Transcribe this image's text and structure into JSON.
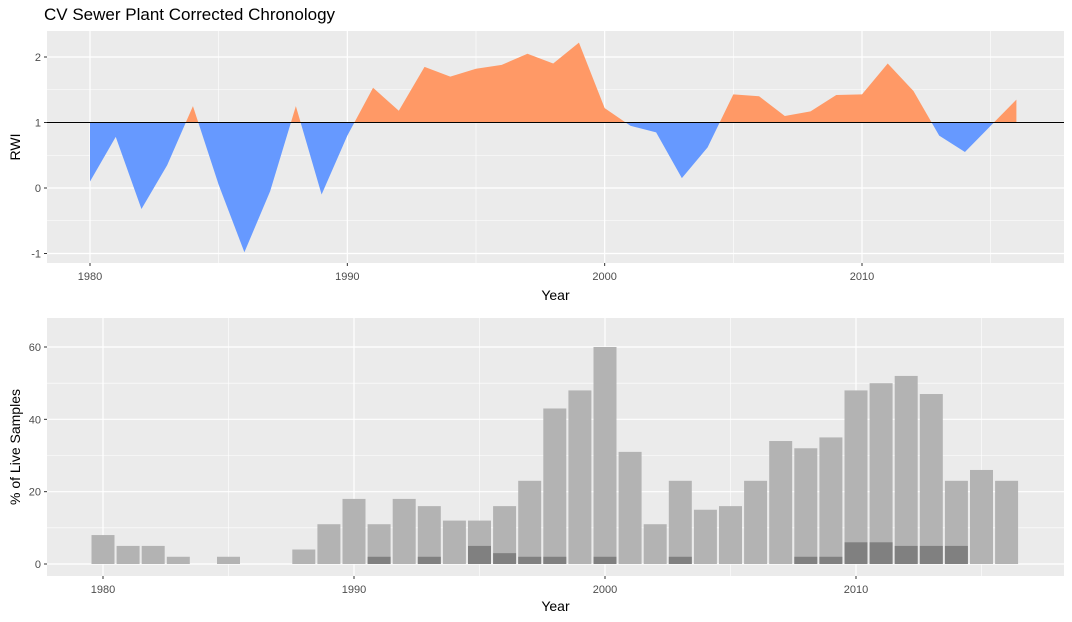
{
  "title": "CV Sewer Plant Corrected Chronology",
  "colors": {
    "above": "#FF9966",
    "below": "#6699FF",
    "panel": "#EBEBEB",
    "bar_total": "#B3B3B3",
    "bar_sub": "#808080"
  },
  "chart_data": [
    {
      "type": "area",
      "xlabel": "Year",
      "ylabel": "RWI",
      "xlim": [
        1980,
        2016
      ],
      "ylim": [
        -1,
        2.25
      ],
      "xticks": [
        1980,
        1990,
        2000,
        2010
      ],
      "yticks": [
        -1,
        0,
        1,
        2
      ],
      "baseline": 1,
      "x": [
        1980,
        1981,
        1982,
        1983,
        1984,
        1985,
        1986,
        1987,
        1988,
        1989,
        1990,
        1991,
        1992,
        1993,
        1994,
        1995,
        1996,
        1997,
        1998,
        1999,
        2000,
        2001,
        2002,
        2003,
        2004,
        2005,
        2006,
        2007,
        2008,
        2009,
        2010,
        2011,
        2012,
        2013,
        2014,
        2015,
        2016
      ],
      "y": [
        0.1,
        0.78,
        -0.32,
        0.35,
        1.25,
        0.05,
        -0.98,
        -0.05,
        1.25,
        -0.1,
        0.8,
        1.53,
        1.18,
        1.85,
        1.7,
        1.82,
        1.88,
        2.05,
        1.9,
        2.22,
        1.22,
        0.95,
        0.85,
        0.15,
        0.62,
        1.43,
        1.4,
        1.1,
        1.17,
        1.42,
        1.43,
        1.9,
        1.48,
        0.8,
        0.55,
        0.95,
        1.35
      ],
      "legend": "none"
    },
    {
      "type": "bar",
      "xlabel": "Year",
      "ylabel": "% of Live Samples",
      "xlim": [
        1980,
        2016
      ],
      "ylim": [
        0,
        65
      ],
      "xticks": [
        1980,
        1990,
        2000,
        2010
      ],
      "yticks": [
        0,
        20,
        40,
        60
      ],
      "categories": [
        1980,
        1981,
        1982,
        1983,
        1984,
        1985,
        1986,
        1987,
        1988,
        1989,
        1990,
        1991,
        1992,
        1993,
        1994,
        1995,
        1996,
        1997,
        1998,
        1999,
        2000,
        2001,
        2002,
        2003,
        2004,
        2005,
        2006,
        2007,
        2008,
        2009,
        2010,
        2011,
        2012,
        2013,
        2014,
        2015,
        2016
      ],
      "series": [
        {
          "values": [
            8,
            5,
            5,
            2,
            0,
            2,
            0,
            0,
            4,
            11,
            18,
            11,
            18,
            16,
            12,
            12,
            16,
            23,
            43,
            48,
            60,
            31,
            11,
            23,
            15,
            16,
            23,
            34,
            32,
            35,
            48,
            50,
            52,
            47,
            23,
            26,
            23
          ]
        },
        {
          "values": [
            0,
            0,
            0,
            0,
            0,
            0,
            0,
            0,
            0,
            0,
            0,
            2,
            0,
            2,
            0,
            5,
            3,
            2,
            2,
            0,
            2,
            0,
            0,
            2,
            0,
            0,
            0,
            0,
            2,
            2,
            6,
            6,
            5,
            5,
            5,
            0,
            0
          ]
        }
      ],
      "legend": "none"
    }
  ]
}
